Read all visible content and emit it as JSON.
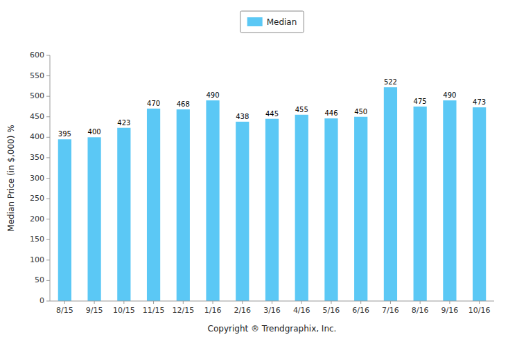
{
  "chart_data": {
    "type": "bar",
    "categories": [
      "8/15",
      "9/15",
      "10/15",
      "11/15",
      "12/15",
      "1/16",
      "2/16",
      "3/16",
      "4/16",
      "5/16",
      "6/16",
      "7/16",
      "8/16",
      "9/16",
      "10/16"
    ],
    "series": [
      {
        "name": "Median",
        "color": "#5BC8F5",
        "values": [
          395,
          400,
          423,
          470,
          468,
          490,
          438,
          445,
          455,
          446,
          450,
          522,
          475,
          490,
          473
        ]
      }
    ],
    "xlabel": "Copyright ® Trendgraphix, Inc.",
    "ylabel": "Median Price (in $,000) %",
    "ylim": [
      0,
      600
    ],
    "yticks": [
      0,
      50,
      100,
      150,
      200,
      250,
      300,
      350,
      400,
      450,
      500,
      550,
      600
    ],
    "grid": false,
    "legend": "top",
    "data_labels": true
  }
}
